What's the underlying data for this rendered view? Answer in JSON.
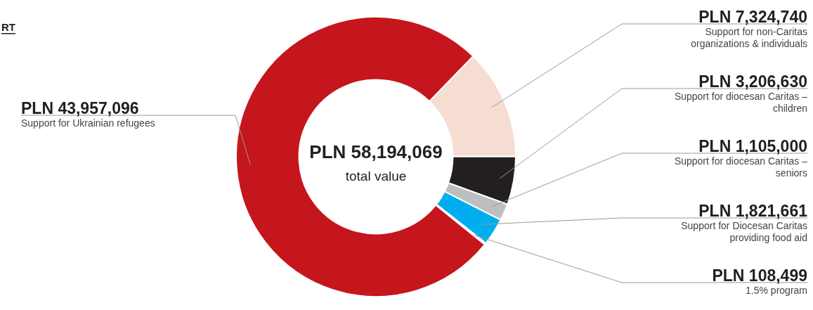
{
  "chart_data": {
    "type": "donut",
    "categories": [
      "Support for non-Caritas organizations & individuals",
      "Support for diocesan Caritas – children",
      "Support for diocesan Caritas – seniors",
      "Support for Diocesan Caritas providing food aid",
      "1.5% program",
      "Support for Ukrainian refugees"
    ],
    "values": [
      7324740,
      3206630,
      1105000,
      1821661,
      108499,
      43957096
    ],
    "value_labels": [
      "PLN 7,324,740",
      "PLN 3,206,630",
      "PLN 1,105,000",
      "PLN 1,821,661",
      "PLN 108,499",
      "PLN 43,957,096"
    ],
    "colors": [
      "#f5ddd2",
      "#231f20",
      "#bcbec0",
      "#00aeef",
      "#f4c3b0",
      "#c4161c"
    ],
    "annotations": [
      "PLN 58,194,069",
      "total value",
      "RT"
    ],
    "legend": false
  }
}
